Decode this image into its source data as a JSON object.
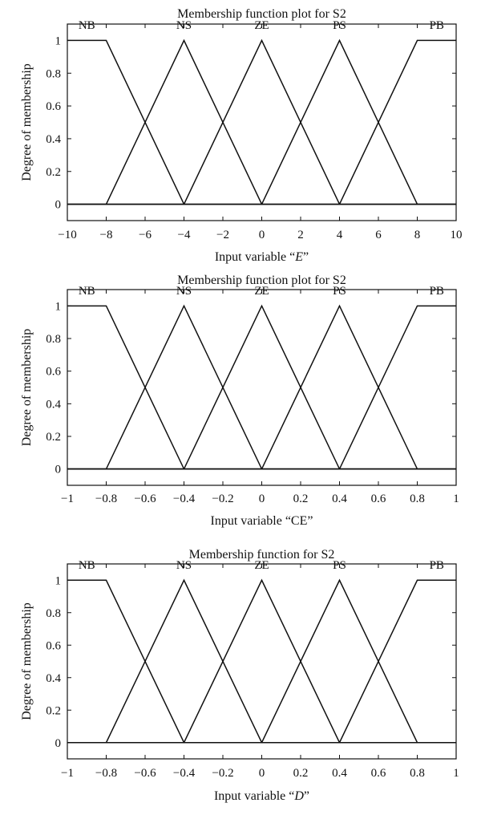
{
  "figure": {
    "background": "#ffffff",
    "line_color": "#111111"
  },
  "chart_data": [
    {
      "type": "line",
      "title": "Membership function plot for S2",
      "xlabel_prefix": "Input variable “",
      "xlabel_var": "E",
      "xlabel_suffix": "”",
      "xlabel_italic": true,
      "ylabel": "Degree of membership",
      "xlim": [
        -10,
        10
      ],
      "ylim": [
        -0.1,
        1.1
      ],
      "xticks": [
        -10,
        -8,
        -6,
        -4,
        -2,
        0,
        2,
        4,
        6,
        8,
        10
      ],
      "xtick_labels": [
        "−10",
        "−8",
        "−6",
        "−4",
        "−2",
        "0",
        "2",
        "4",
        "6",
        "8",
        "10"
      ],
      "yticks": [
        0,
        0.2,
        0.4,
        0.6,
        0.8,
        1
      ],
      "ytick_labels": [
        "0",
        "0.2",
        "0.4",
        "0.6",
        "0.8",
        "1"
      ],
      "series": [
        {
          "name": "NB",
          "x": [
            -10,
            -8,
            -4,
            10
          ],
          "y": [
            1,
            1,
            0,
            0
          ]
        },
        {
          "name": "NS",
          "x": [
            -10,
            -8,
            -4,
            0,
            10
          ],
          "y": [
            0,
            0,
            1,
            0,
            0
          ]
        },
        {
          "name": "ZE",
          "x": [
            -10,
            -4,
            0,
            4,
            10
          ],
          "y": [
            0,
            0,
            1,
            0,
            0
          ]
        },
        {
          "name": "PS",
          "x": [
            -10,
            0,
            4,
            8,
            10
          ],
          "y": [
            0,
            0,
            1,
            0,
            0
          ]
        },
        {
          "name": "PB",
          "x": [
            -10,
            4,
            8,
            10
          ],
          "y": [
            0,
            0,
            1,
            1
          ]
        }
      ],
      "mf_label_x": [
        -9,
        -4,
        0,
        4,
        9
      ]
    },
    {
      "type": "line",
      "title": "Membership function plot for S2",
      "xlabel_prefix": "Input variable “CE”",
      "xlabel_var": "",
      "xlabel_suffix": "",
      "xlabel_italic": false,
      "ylabel": "Degree of membership",
      "xlim": [
        -1,
        1
      ],
      "ylim": [
        -0.1,
        1.1
      ],
      "xticks": [
        -1,
        -0.8,
        -0.6,
        -0.4,
        -0.2,
        0,
        0.2,
        0.4,
        0.6,
        0.8,
        1
      ],
      "xtick_labels": [
        "−1",
        "−0.8",
        "−0.6",
        "−0.4",
        "−0.2",
        "0",
        "0.2",
        "0.4",
        "0.6",
        "0.8",
        "1"
      ],
      "yticks": [
        0,
        0.2,
        0.4,
        0.6,
        0.8,
        1
      ],
      "ytick_labels": [
        "0",
        "0.2",
        "0.4",
        "0.6",
        "0.8",
        "1"
      ],
      "series": [
        {
          "name": "NB",
          "x": [
            -1,
            -0.8,
            -0.4,
            1
          ],
          "y": [
            1,
            1,
            0,
            0
          ]
        },
        {
          "name": "NS",
          "x": [
            -1,
            -0.8,
            -0.4,
            0,
            1
          ],
          "y": [
            0,
            0,
            1,
            0,
            0
          ]
        },
        {
          "name": "ZE",
          "x": [
            -1,
            -0.4,
            0,
            0.4,
            1
          ],
          "y": [
            0,
            0,
            1,
            0,
            0
          ]
        },
        {
          "name": "PS",
          "x": [
            -1,
            0,
            0.4,
            0.8,
            1
          ],
          "y": [
            0,
            0,
            1,
            0,
            0
          ]
        },
        {
          "name": "PB",
          "x": [
            -1,
            0.4,
            0.8,
            1
          ],
          "y": [
            0,
            0,
            1,
            1
          ]
        }
      ],
      "mf_label_x": [
        -0.9,
        -0.4,
        0,
        0.4,
        0.9
      ]
    },
    {
      "type": "line",
      "title": "Membership function for S2",
      "xlabel_prefix": "Input variable “",
      "xlabel_var": "D",
      "xlabel_suffix": "”",
      "xlabel_italic": true,
      "ylabel": "Degree of membership",
      "xlim": [
        -1,
        1
      ],
      "ylim": [
        -0.1,
        1.1
      ],
      "xticks": [
        -1,
        -0.8,
        -0.6,
        -0.4,
        -0.2,
        0,
        0.2,
        0.4,
        0.6,
        0.8,
        1
      ],
      "xtick_labels": [
        "−1",
        "−0.8",
        "−0.6",
        "−0.4",
        "−0.2",
        "0",
        "0.2",
        "0.4",
        "0.6",
        "0.8",
        "1"
      ],
      "yticks": [
        0,
        0.2,
        0.4,
        0.6,
        0.8,
        1
      ],
      "ytick_labels": [
        "0",
        "0.2",
        "0.4",
        "0.6",
        "0.8",
        "1"
      ],
      "series": [
        {
          "name": "NB",
          "x": [
            -1,
            -0.8,
            -0.4,
            1
          ],
          "y": [
            1,
            1,
            0,
            0
          ]
        },
        {
          "name": "NS",
          "x": [
            -1,
            -0.8,
            -0.4,
            0,
            1
          ],
          "y": [
            0,
            0,
            1,
            0,
            0
          ]
        },
        {
          "name": "ZE",
          "x": [
            -1,
            -0.4,
            0,
            0.4,
            1
          ],
          "y": [
            0,
            0,
            1,
            0,
            0
          ]
        },
        {
          "name": "PS",
          "x": [
            -1,
            0,
            0.4,
            0.8,
            1
          ],
          "y": [
            0,
            0,
            1,
            0,
            0
          ]
        },
        {
          "name": "PB",
          "x": [
            -1,
            0.4,
            0.8,
            1
          ],
          "y": [
            0,
            0,
            1,
            1
          ]
        }
      ],
      "mf_label_x": [
        -0.9,
        -0.4,
        0,
        0.4,
        0.9
      ]
    }
  ]
}
